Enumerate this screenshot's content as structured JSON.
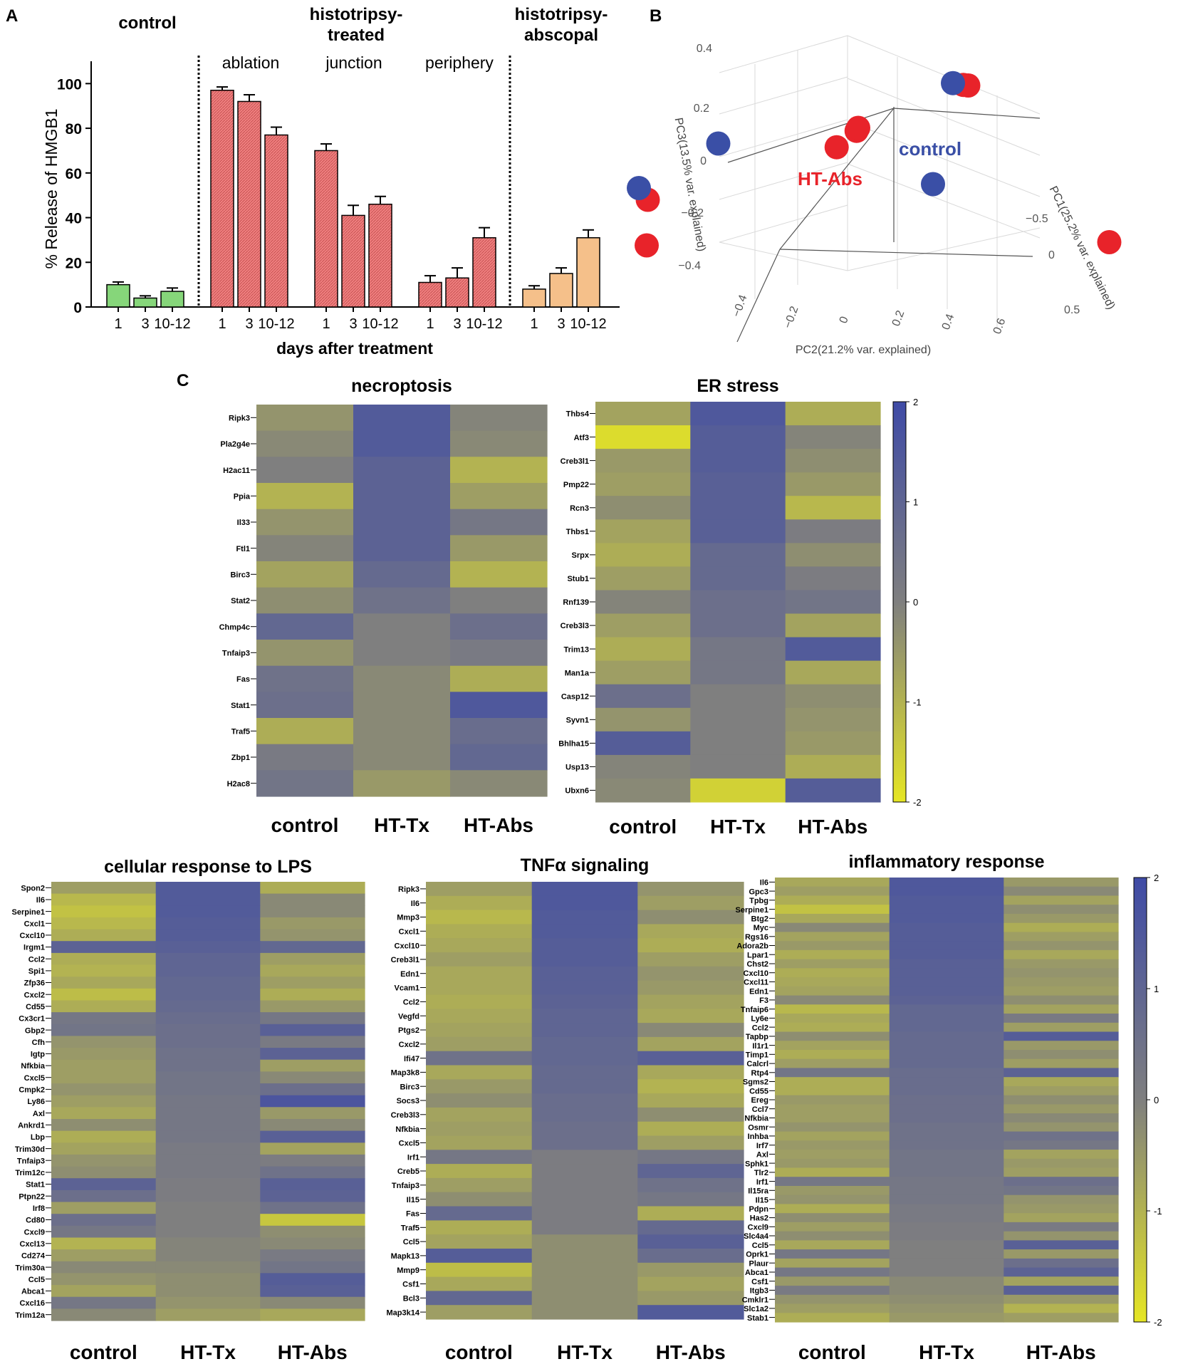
{
  "colors": {
    "green": "#86d67a",
    "red": "#f08080",
    "orange": "#f5c08a",
    "pca_red": "#e8232a",
    "pca_blue": "#3a4fa6",
    "hm_blue": "#3f4ba6",
    "hm_gray": "#7f7f7f",
    "hm_yellow": "#e6e624"
  },
  "panels": {
    "A": "A",
    "B": "B",
    "C": "C"
  },
  "chart_data": [
    {
      "type": "bar",
      "panel": "A",
      "ylabel": "% Release of HMGB1",
      "xlabel": "days after treatment",
      "ylim": [
        0,
        110
      ],
      "yticks": [
        "0",
        "20",
        "40",
        "60",
        "80",
        "100"
      ],
      "group_titles": {
        "control": "control",
        "treated": "histotripsy-treated",
        "abscopal": "histotripsy-abscopal"
      },
      "subgroup_titles": {
        "ablation": "ablation",
        "junction": "junction",
        "periphery": "periphery"
      },
      "groups": [
        {
          "name": "control",
          "categories": [
            "1",
            "3",
            "10-12"
          ],
          "values": [
            10,
            4,
            7
          ],
          "errors": [
            1.2,
            1,
            1.5
          ],
          "color": "green"
        },
        {
          "name": "ablation",
          "categories": [
            "1",
            "3",
            "10-12"
          ],
          "values": [
            97,
            92,
            77
          ],
          "errors": [
            1.5,
            3,
            3.5
          ],
          "color": "red"
        },
        {
          "name": "junction",
          "categories": [
            "1",
            "3",
            "10-12"
          ],
          "values": [
            70,
            41,
            46
          ],
          "errors": [
            3,
            4.5,
            3.5
          ],
          "color": "red"
        },
        {
          "name": "periphery",
          "categories": [
            "1",
            "3",
            "10-12"
          ],
          "values": [
            11,
            13,
            31
          ],
          "errors": [
            3,
            4.5,
            4.5
          ],
          "color": "red"
        },
        {
          "name": "abscopal",
          "categories": [
            "1",
            "3",
            "10-12"
          ],
          "values": [
            8,
            15,
            31
          ],
          "errors": [
            1.5,
            2.5,
            3.5
          ],
          "color": "orange"
        }
      ]
    },
    {
      "type": "scatter",
      "panel": "B",
      "subtype": "3d-pca",
      "axis_labels": {
        "pc1": "PC1(25.2% var. explained)",
        "pc2": "PC2(21.2% var. explained)",
        "pc3": "PC3(13.5% var. explained)"
      },
      "pc1_ticks": [
        "−0.5",
        "0",
        "0.5"
      ],
      "pc2_ticks": [
        "−0.4",
        "−0.2",
        "0",
        "0.2",
        "0.4",
        "0.6"
      ],
      "pc3_ticks": [
        "0.4",
        "0.2",
        "0",
        "−0.2",
        "−0.4"
      ],
      "series": [
        {
          "name": "HT-Abs",
          "label": "HT-Abs",
          "color": "pca_red",
          "points": [
            [
              0.55,
              0.25,
              0.45
            ],
            [
              0.18,
              0.35,
              0.2
            ],
            [
              0.28,
              0.55,
              0.2
            ],
            [
              0.05,
              0.2,
              0.15
            ],
            [
              0.95,
              0.05,
              -0.1
            ],
            [
              -0.5,
              0.55,
              -0.2
            ],
            [
              -0.55,
              0.5,
              -0.4
            ],
            [
              0.32,
              0.02,
              0.35
            ]
          ]
        },
        {
          "name": "control",
          "label": "control",
          "color": "pca_blue",
          "points": [
            [
              0.35,
              0.1,
              0.38
            ],
            [
              -0.3,
              0.45,
              0.05
            ],
            [
              0.45,
              0.3,
              0.05
            ],
            [
              -0.4,
              0.7,
              -0.1
            ]
          ]
        }
      ]
    },
    {
      "type": "heatmap",
      "panel": "C",
      "title": "necroptosis",
      "columns": [
        "control",
        "HT-Tx",
        "HT-Abs"
      ],
      "genes": [
        "Ripk3",
        "Pla2g4e",
        "H2ac11",
        "Ppia",
        "Il33",
        "Ftl1",
        "Birc3",
        "Stat2",
        "Chmp4c",
        "Tnfaip3",
        "Fas",
        "Stat1",
        "Traf5",
        "Zbp1",
        "H2ac8"
      ],
      "values": [
        [
          -0.4,
          1.4,
          -0.1
        ],
        [
          -0.2,
          1.4,
          -0.2
        ],
        [
          0,
          1.1,
          -1.0
        ],
        [
          -1.0,
          1.1,
          -0.6
        ],
        [
          -0.4,
          1.1,
          0.3
        ],
        [
          -0.1,
          1.1,
          -0.5
        ],
        [
          -0.7,
          0.8,
          -1.0
        ],
        [
          -0.3,
          0.5,
          0
        ],
        [
          0.9,
          0,
          0.6
        ],
        [
          -0.4,
          0,
          0.2
        ],
        [
          0.5,
          -0.2,
          -0.9
        ],
        [
          0.6,
          -0.2,
          1.5
        ],
        [
          -0.9,
          -0.2,
          0.7
        ],
        [
          0.2,
          -0.2,
          0.9
        ],
        [
          0.4,
          -0.5,
          -0.2
        ]
      ]
    },
    {
      "type": "heatmap",
      "panel": "C",
      "title": "ER stress",
      "columns": [
        "control",
        "HT-Tx",
        "HT-Abs"
      ],
      "genes": [
        "Thbs4",
        "Atf3",
        "Creb3l1",
        "Pmp22",
        "Rcn3",
        "Thbs1",
        "Srpx",
        "Stub1",
        "Rnf139",
        "Creb3l3",
        "Trim13",
        "Man1a",
        "Casp12",
        "Syvn1",
        "Bhlha15",
        "Usp13",
        "Ubxn6"
      ],
      "values": [
        [
          -0.7,
          1.5,
          -0.9
        ],
        [
          -1.8,
          1.3,
          -0.1
        ],
        [
          -0.5,
          1.3,
          -0.3
        ],
        [
          -0.6,
          1.2,
          -0.5
        ],
        [
          -0.3,
          1.2,
          -1.1
        ],
        [
          -0.7,
          1.2,
          0.1
        ],
        [
          -0.9,
          0.8,
          -0.3
        ],
        [
          -0.6,
          0.8,
          0.1
        ],
        [
          -0.1,
          0.6,
          0.4
        ],
        [
          -0.6,
          0.6,
          -0.7
        ],
        [
          -0.9,
          0.3,
          1.4
        ],
        [
          -0.6,
          0.3,
          -0.8
        ],
        [
          0.6,
          0,
          -0.3
        ],
        [
          -0.4,
          0,
          -0.4
        ],
        [
          1.3,
          0,
          -0.5
        ],
        [
          -0.1,
          0,
          -0.9
        ],
        [
          -0.2,
          -1.6,
          1.3
        ]
      ],
      "colorbar": {
        "ticks": [
          "2",
          "1",
          "0",
          "-1",
          "-2"
        ]
      }
    },
    {
      "type": "heatmap",
      "panel": "C",
      "title": "cellular response to LPS",
      "columns": [
        "control",
        "HT-Tx",
        "HT-Abs"
      ],
      "genes": [
        "Spon2",
        "Il6",
        "Serpine1",
        "Cxcl1",
        "Cxcl10",
        "Irgm1",
        "Ccl2",
        "Spi1",
        "Zfp36",
        "Cxcl2",
        "Cd55",
        "Cx3cr1",
        "Gbp2",
        "Cfh",
        "Igtp",
        "Nfkbia",
        "Cxcl5",
        "Cmpk2",
        "Ly86",
        "Axl",
        "Ankrd1",
        "Lbp",
        "Trim30d",
        "Tnfaip3",
        "Trim12c",
        "Stat1",
        "Ptpn22",
        "Irf8",
        "Cd80",
        "Cxcl9",
        "Cxcl13",
        "Cd274",
        "Trim30a",
        "Ccl5",
        "Abca1",
        "Cxcl16",
        "Trim12a"
      ],
      "values": [
        [
          -0.6,
          1.4,
          -0.9
        ],
        [
          -1.1,
          1.4,
          -0.2
        ],
        [
          -1.3,
          1.4,
          -0.2
        ],
        [
          -1.1,
          1.3,
          -0.5
        ],
        [
          -0.9,
          1.3,
          -0.4
        ],
        [
          1.1,
          1.2,
          0.9
        ],
        [
          -0.9,
          1.0,
          -0.6
        ],
        [
          -1.0,
          1.0,
          -0.8
        ],
        [
          -0.8,
          0.9,
          -0.6
        ],
        [
          -1.2,
          0.9,
          -0.9
        ],
        [
          -0.9,
          0.8,
          -0.5
        ],
        [
          0.3,
          0.7,
          0.3
        ],
        [
          0.4,
          0.6,
          1.2
        ],
        [
          -0.4,
          0.6,
          0.2
        ],
        [
          -0.5,
          0.5,
          1.1
        ],
        [
          -0.6,
          0.5,
          -0.6
        ],
        [
          -0.6,
          0.4,
          -0.2
        ],
        [
          -0.4,
          0.4,
          0.6
        ],
        [
          -0.6,
          0.3,
          1.6
        ],
        [
          -0.8,
          0.3,
          -0.5
        ],
        [
          -0.3,
          0.3,
          -0.2
        ],
        [
          -0.9,
          0.3,
          1.2
        ],
        [
          -0.7,
          0.2,
          -0.7
        ],
        [
          -0.4,
          0.2,
          0.1
        ],
        [
          -0.3,
          0.2,
          0.5
        ],
        [
          1.1,
          0.1,
          1.2
        ],
        [
          0.6,
          0.1,
          1.1
        ],
        [
          -0.6,
          0,
          0.5
        ],
        [
          0.6,
          0,
          -1.4
        ],
        [
          0.3,
          0,
          -0.3
        ],
        [
          -1.0,
          -0.1,
          -0.2
        ],
        [
          -0.6,
          -0.1,
          0.2
        ],
        [
          -0.2,
          -0.2,
          0.4
        ],
        [
          -0.4,
          -0.3,
          1.3
        ],
        [
          -0.7,
          -0.3,
          1.2
        ],
        [
          0.3,
          -0.4,
          -0.2
        ],
        [
          -0.2,
          -0.6,
          -0.8
        ]
      ]
    },
    {
      "type": "heatmap",
      "panel": "C",
      "title": "TNFα signaling",
      "columns": [
        "control",
        "HT-Tx",
        "HT-Abs"
      ],
      "genes": [
        "Ripk3",
        "Il6",
        "Mmp3",
        "Cxcl1",
        "Cxcl10",
        "Creb3l1",
        "Edn1",
        "Vcam1",
        "Ccl2",
        "Vegfd",
        "Ptgs2",
        "Cxcl2",
        "Ifi47",
        "Map3k8",
        "Birc3",
        "Socs3",
        "Creb3l3",
        "Nfkbia",
        "Cxcl5",
        "Irf1",
        "Creb5",
        "Tnfaip3",
        "Il15",
        "Fas",
        "Traf5",
        "Ccl5",
        "Mapk13",
        "Mmp9",
        "Csf1",
        "Bcl3",
        "Map3k14"
      ],
      "values": [
        [
          -0.6,
          1.5,
          -0.4
        ],
        [
          -0.9,
          1.5,
          -0.6
        ],
        [
          -1.1,
          1.4,
          -0.3
        ],
        [
          -0.9,
          1.4,
          -0.8
        ],
        [
          -0.8,
          1.3,
          -0.9
        ],
        [
          -0.6,
          1.3,
          -0.6
        ],
        [
          -0.8,
          1.2,
          -0.4
        ],
        [
          -0.8,
          1.2,
          -0.5
        ],
        [
          -0.9,
          1.1,
          -0.7
        ],
        [
          -0.8,
          1.0,
          -0.8
        ],
        [
          -0.7,
          1.0,
          -0.2
        ],
        [
          -0.6,
          0.9,
          -0.7
        ],
        [
          0.5,
          0.9,
          1.2
        ],
        [
          -0.8,
          0.8,
          -0.8
        ],
        [
          -0.5,
          0.8,
          -1.0
        ],
        [
          -0.3,
          0.7,
          -0.8
        ],
        [
          -0.7,
          0.7,
          -0.3
        ],
        [
          -0.6,
          0.6,
          -0.9
        ],
        [
          -0.7,
          0.6,
          -0.6
        ],
        [
          0.3,
          0.1,
          0.3
        ],
        [
          -0.9,
          0.1,
          1.0
        ],
        [
          -0.6,
          0.1,
          0.5
        ],
        [
          -0.3,
          0.1,
          0.3
        ],
        [
          0.8,
          0.1,
          -0.9
        ],
        [
          -0.9,
          0.1,
          0.8
        ],
        [
          -0.7,
          -0.3,
          1.2
        ],
        [
          1.3,
          -0.3,
          0.7
        ],
        [
          -1.2,
          -0.3,
          -0.5
        ],
        [
          -0.8,
          -0.3,
          -0.7
        ],
        [
          0.9,
          -0.3,
          -0.5
        ],
        [
          -0.6,
          -0.3,
          1.4
        ]
      ]
    },
    {
      "type": "heatmap",
      "panel": "C",
      "title": "inflammatory response",
      "columns": [
        "control",
        "HT-Tx",
        "HT-Abs"
      ],
      "genes": [
        "Il6",
        "Gpc3",
        "Tpbg",
        "Serpine1",
        "Btg2",
        "Myc",
        "Rgs16",
        "Adora2b",
        "Lpar1",
        "Chst2",
        "Cxcl10",
        "Cxcl11",
        "Edn1",
        "F3",
        "Tnfaip6",
        "Ly6e",
        "Ccl2",
        "Tapbp",
        "Il1r1",
        "Timp1",
        "Calcrl",
        "Rtp4",
        "Sgms2",
        "Cd55",
        "Ereg",
        "Ccl7",
        "Nfkbia",
        "Osmr",
        "Inhba",
        "Irf7",
        "Axl",
        "Sphk1",
        "Tlr2",
        "Irf1",
        "Il15ra",
        "Il15",
        "Pdpn",
        "Has2",
        "Cxcl9",
        "Slc4a4",
        "Ccl5",
        "Oprk1",
        "Plaur",
        "Abca1",
        "Csf1",
        "Itgb3",
        "Cmklr1",
        "Slc1a2",
        "Stab1"
      ],
      "values": [
        [
          -0.8,
          1.5,
          -0.5
        ],
        [
          -0.6,
          1.5,
          -0.2
        ],
        [
          -0.9,
          1.4,
          -0.7
        ],
        [
          -1.3,
          1.4,
          -0.3
        ],
        [
          -0.8,
          1.4,
          -0.5
        ],
        [
          -0.2,
          1.3,
          -0.9
        ],
        [
          -0.7,
          1.3,
          -0.6
        ],
        [
          -0.5,
          1.3,
          -0.4
        ],
        [
          -0.9,
          1.3,
          -0.8
        ],
        [
          -0.6,
          1.2,
          -0.5
        ],
        [
          -0.9,
          1.2,
          -0.4
        ],
        [
          -0.8,
          1.2,
          -0.5
        ],
        [
          -0.7,
          1.2,
          -0.6
        ],
        [
          -0.2,
          1.1,
          -0.3
        ],
        [
          -1.1,
          0.9,
          -0.7
        ],
        [
          -0.8,
          0.9,
          0.2
        ],
        [
          -0.9,
          0.9,
          -0.6
        ],
        [
          -0.3,
          0.8,
          1.3
        ],
        [
          -0.7,
          0.8,
          -0.5
        ],
        [
          -0.9,
          0.8,
          -0.3
        ],
        [
          -0.6,
          0.8,
          -0.6
        ],
        [
          0.4,
          0.7,
          1.1
        ],
        [
          -0.9,
          0.7,
          -0.8
        ],
        [
          -0.9,
          0.7,
          -0.6
        ],
        [
          -0.5,
          0.6,
          -0.3
        ],
        [
          -0.6,
          0.6,
          -0.5
        ],
        [
          -0.6,
          0.6,
          -0.2
        ],
        [
          -0.4,
          0.5,
          -0.4
        ],
        [
          -0.7,
          0.5,
          0.5
        ],
        [
          -0.5,
          0.5,
          0.3
        ],
        [
          -0.6,
          0.4,
          -0.7
        ],
        [
          -0.5,
          0.4,
          -0.5
        ],
        [
          -0.9,
          0.4,
          -0.6
        ],
        [
          0.3,
          0.3,
          0.6
        ],
        [
          -0.5,
          0.3,
          0.4
        ],
        [
          -0.4,
          0.3,
          -0.4
        ],
        [
          -0.9,
          0.2,
          -0.5
        ],
        [
          -0.3,
          0.2,
          -0.7
        ],
        [
          -0.6,
          0.1,
          0.2
        ],
        [
          -0.3,
          0.1,
          -0.4
        ],
        [
          -0.8,
          0,
          1.2
        ],
        [
          0.3,
          0,
          -0.5
        ],
        [
          -0.7,
          0,
          0.6
        ],
        [
          0.3,
          0,
          1.1
        ],
        [
          -0.5,
          -0.2,
          -0.7
        ],
        [
          0.2,
          -0.2,
          1.2
        ],
        [
          -0.4,
          -0.3,
          -0.5
        ],
        [
          -0.6,
          -0.4,
          -1.0
        ],
        [
          -0.9,
          -0.5,
          -0.6
        ]
      ],
      "colorbar": {
        "ticks": [
          "2",
          "1",
          "0",
          "-1",
          "-2"
        ]
      }
    }
  ]
}
